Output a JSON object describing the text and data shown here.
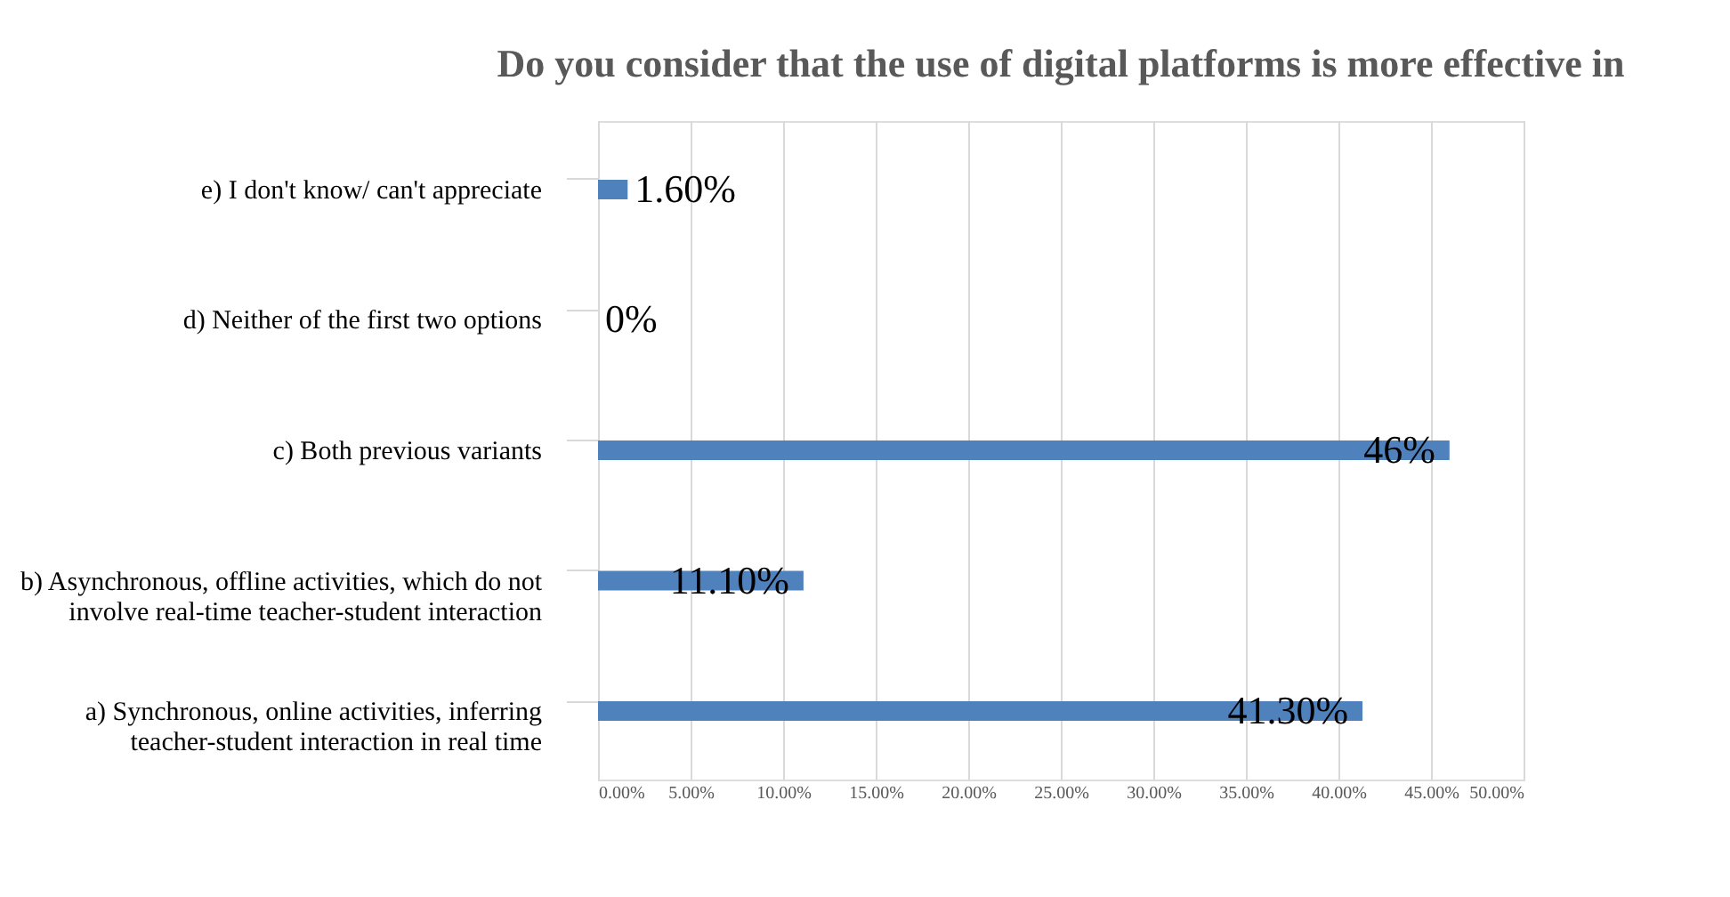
{
  "chart_data": {
    "type": "bar",
    "orientation": "horizontal",
    "title": "Do you consider that the use of digital platforms is more effective in",
    "categories": [
      "e) I don't know/ can't appreciate",
      "d) Neither of the first two options",
      "c) Both previous variants",
      "b) Asynchronous, offline activities, which do not\ninvolve real-time teacher-student interaction",
      "a) Synchronous, online activities, inferring\nteacher-student interaction in real time"
    ],
    "values": [
      1.6,
      0,
      46,
      11.1,
      41.3
    ],
    "value_labels": [
      "1.60%",
      "0%",
      "46%",
      "11.10%",
      "41.30%"
    ],
    "color": "#4f81bd",
    "xlim": [
      0,
      50
    ],
    "xticks": [
      {
        "value": 0,
        "label": "0.00%"
      },
      {
        "value": 5,
        "label": "5.00%"
      },
      {
        "value": 10,
        "label": "10.00%"
      },
      {
        "value": 15,
        "label": "15.00%"
      },
      {
        "value": 20,
        "label": "20.00%"
      },
      {
        "value": 25,
        "label": "25.00%"
      },
      {
        "value": 30,
        "label": "30.00%"
      },
      {
        "value": 35,
        "label": "35.00%"
      },
      {
        "value": 40,
        "label": "40.00%"
      },
      {
        "value": 45,
        "label": "45.00%"
      },
      {
        "value": 50,
        "label": "50.00%"
      }
    ],
    "grid": "x"
  }
}
